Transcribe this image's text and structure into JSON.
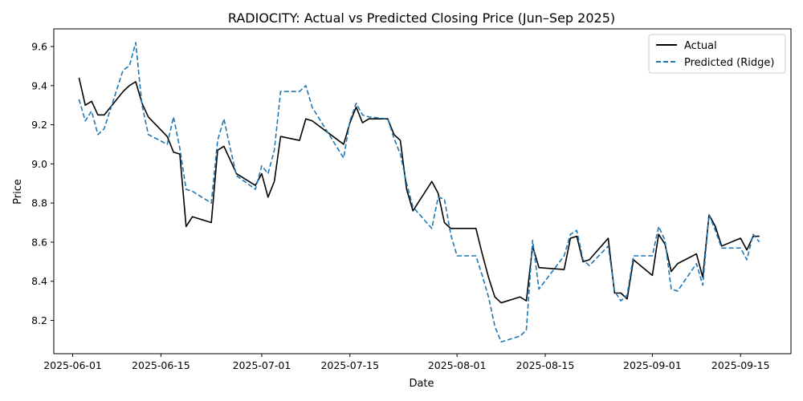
{
  "chart_data": {
    "type": "line",
    "title": "RADIOCITY: Actual vs Predicted Closing Price (Jun–Sep 2025)",
    "xlabel": "Date",
    "ylabel": "Price",
    "xlim": [
      "2025-05-29",
      "2025-09-23"
    ],
    "ylim": [
      8.03,
      9.69
    ],
    "x_ticks": [
      "2025-06-01",
      "2025-06-15",
      "2025-07-01",
      "2025-07-15",
      "2025-08-01",
      "2025-08-15",
      "2025-09-01",
      "2025-09-15"
    ],
    "y_ticks": [
      8.2,
      8.4,
      8.6,
      8.8,
      9.0,
      9.2,
      9.4,
      9.6
    ],
    "grid": false,
    "legend": "top-right",
    "series": [
      {
        "name": "Actual",
        "color": "#000000",
        "style": "solid",
        "x": [
          "2025-06-02",
          "2025-06-03",
          "2025-06-04",
          "2025-06-05",
          "2025-06-06",
          "2025-06-09",
          "2025-06-10",
          "2025-06-11",
          "2025-06-12",
          "2025-06-13",
          "2025-06-16",
          "2025-06-17",
          "2025-06-18",
          "2025-06-19",
          "2025-06-20",
          "2025-06-23",
          "2025-06-24",
          "2025-06-25",
          "2025-06-26",
          "2025-06-27",
          "2025-06-30",
          "2025-07-01",
          "2025-07-02",
          "2025-07-03",
          "2025-07-04",
          "2025-07-07",
          "2025-07-08",
          "2025-07-09",
          "2025-07-14",
          "2025-07-15",
          "2025-07-16",
          "2025-07-17",
          "2025-07-18",
          "2025-07-21",
          "2025-07-22",
          "2025-07-23",
          "2025-07-24",
          "2025-07-25",
          "2025-07-28",
          "2025-07-29",
          "2025-07-30",
          "2025-07-31",
          "2025-08-01",
          "2025-08-04",
          "2025-08-05",
          "2025-08-06",
          "2025-08-07",
          "2025-08-08",
          "2025-08-11",
          "2025-08-12",
          "2025-08-13",
          "2025-08-14",
          "2025-08-18",
          "2025-08-19",
          "2025-08-20",
          "2025-08-21",
          "2025-08-22",
          "2025-08-25",
          "2025-08-26",
          "2025-08-27",
          "2025-08-28",
          "2025-08-29",
          "2025-09-01",
          "2025-09-02",
          "2025-09-03",
          "2025-09-04",
          "2025-09-05",
          "2025-09-08",
          "2025-09-09",
          "2025-09-10",
          "2025-09-11",
          "2025-09-12",
          "2025-09-15",
          "2025-09-16",
          "2025-09-17",
          "2025-09-18"
        ],
        "values": [
          9.44,
          9.3,
          9.32,
          9.25,
          9.25,
          9.37,
          9.4,
          9.42,
          9.31,
          9.24,
          9.14,
          9.06,
          9.05,
          8.68,
          8.73,
          8.7,
          9.07,
          9.09,
          9.02,
          8.95,
          8.89,
          8.95,
          8.83,
          8.91,
          9.14,
          9.12,
          9.23,
          9.22,
          9.1,
          9.21,
          9.29,
          9.21,
          9.23,
          9.23,
          9.15,
          9.12,
          8.87,
          8.76,
          8.91,
          8.85,
          8.7,
          8.67,
          8.67,
          8.67,
          8.54,
          8.42,
          8.32,
          8.29,
          8.32,
          8.3,
          8.58,
          8.47,
          8.46,
          8.62,
          8.63,
          8.5,
          8.51,
          8.62,
          8.34,
          8.34,
          8.31,
          8.51,
          8.43,
          8.64,
          8.59,
          8.45,
          8.49,
          8.54,
          8.42,
          8.74,
          8.68,
          8.58,
          8.62,
          8.56,
          8.63,
          8.63
        ]
      },
      {
        "name": "Predicted (Ridge)",
        "color": "#1f77b4",
        "style": "dashed",
        "x": [
          "2025-06-02",
          "2025-06-03",
          "2025-06-04",
          "2025-06-05",
          "2025-06-06",
          "2025-06-09",
          "2025-06-10",
          "2025-06-11",
          "2025-06-12",
          "2025-06-13",
          "2025-06-16",
          "2025-06-17",
          "2025-06-18",
          "2025-06-19",
          "2025-06-20",
          "2025-06-23",
          "2025-06-24",
          "2025-06-25",
          "2025-06-26",
          "2025-06-27",
          "2025-06-30",
          "2025-07-01",
          "2025-07-02",
          "2025-07-03",
          "2025-07-04",
          "2025-07-07",
          "2025-07-08",
          "2025-07-09",
          "2025-07-14",
          "2025-07-15",
          "2025-07-16",
          "2025-07-17",
          "2025-07-18",
          "2025-07-21",
          "2025-07-22",
          "2025-07-23",
          "2025-07-24",
          "2025-07-25",
          "2025-07-28",
          "2025-07-29",
          "2025-07-30",
          "2025-07-31",
          "2025-08-01",
          "2025-08-04",
          "2025-08-05",
          "2025-08-06",
          "2025-08-07",
          "2025-08-08",
          "2025-08-11",
          "2025-08-12",
          "2025-08-13",
          "2025-08-14",
          "2025-08-18",
          "2025-08-19",
          "2025-08-20",
          "2025-08-21",
          "2025-08-22",
          "2025-08-25",
          "2025-08-26",
          "2025-08-27",
          "2025-08-28",
          "2025-08-29",
          "2025-09-01",
          "2025-09-02",
          "2025-09-03",
          "2025-09-04",
          "2025-09-05",
          "2025-09-08",
          "2025-09-09",
          "2025-09-10",
          "2025-09-11",
          "2025-09-12",
          "2025-09-15",
          "2025-09-16",
          "2025-09-17",
          "2025-09-18"
        ],
        "values": [
          9.33,
          9.22,
          9.27,
          9.15,
          9.18,
          9.48,
          9.5,
          9.62,
          9.3,
          9.15,
          9.1,
          9.24,
          9.08,
          8.87,
          8.86,
          8.8,
          9.12,
          9.23,
          9.08,
          8.94,
          8.87,
          8.99,
          8.95,
          9.07,
          9.37,
          9.37,
          9.4,
          9.29,
          9.03,
          9.22,
          9.31,
          9.25,
          9.24,
          9.23,
          9.13,
          9.05,
          8.9,
          8.78,
          8.67,
          8.83,
          8.82,
          8.64,
          8.53,
          8.53,
          8.43,
          8.32,
          8.17,
          8.09,
          8.12,
          8.15,
          8.61,
          8.36,
          8.53,
          8.64,
          8.66,
          8.51,
          8.48,
          8.58,
          8.35,
          8.3,
          8.33,
          8.53,
          8.53,
          8.68,
          8.61,
          8.36,
          8.35,
          8.49,
          8.38,
          8.74,
          8.66,
          8.57,
          8.57,
          8.51,
          8.64,
          8.6
        ]
      }
    ]
  }
}
